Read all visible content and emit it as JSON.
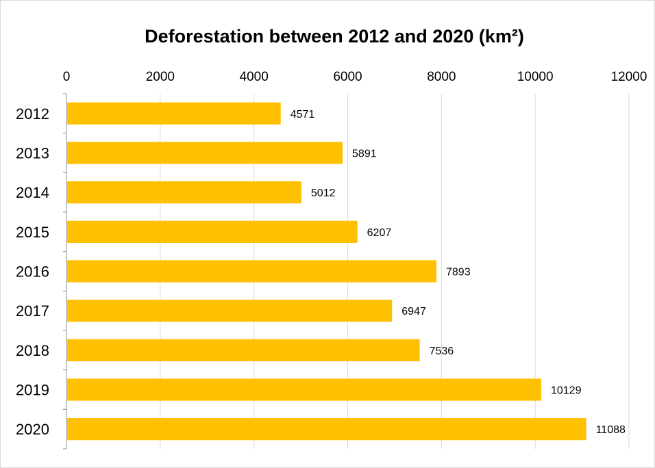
{
  "chart_data": {
    "type": "bar",
    "orientation": "horizontal",
    "title": "Deforestation between 2012 and 2020 (km²)",
    "xlabel": "",
    "ylabel": "",
    "categories": [
      "2012",
      "2013",
      "2014",
      "2015",
      "2016",
      "2017",
      "2018",
      "2019",
      "2020"
    ],
    "values": [
      4571,
      5891,
      5012,
      6207,
      7893,
      6947,
      7536,
      10129,
      11088
    ],
    "value_labels": [
      "4571",
      "5891",
      "5012",
      "6207",
      "7893",
      "6947",
      "7536",
      "10129",
      "11088"
    ],
    "xlim": [
      0,
      12000
    ],
    "x_ticks": [
      0,
      2000,
      4000,
      6000,
      8000,
      10000,
      12000
    ],
    "x_tick_labels": [
      "0",
      "2000",
      "4000",
      "6000",
      "8000",
      "10000",
      "12000"
    ],
    "x_axis_position": "top",
    "grid": true,
    "legend": "none",
    "bar_color": "#FFC000",
    "grid_color": "#d9d9d9"
  }
}
